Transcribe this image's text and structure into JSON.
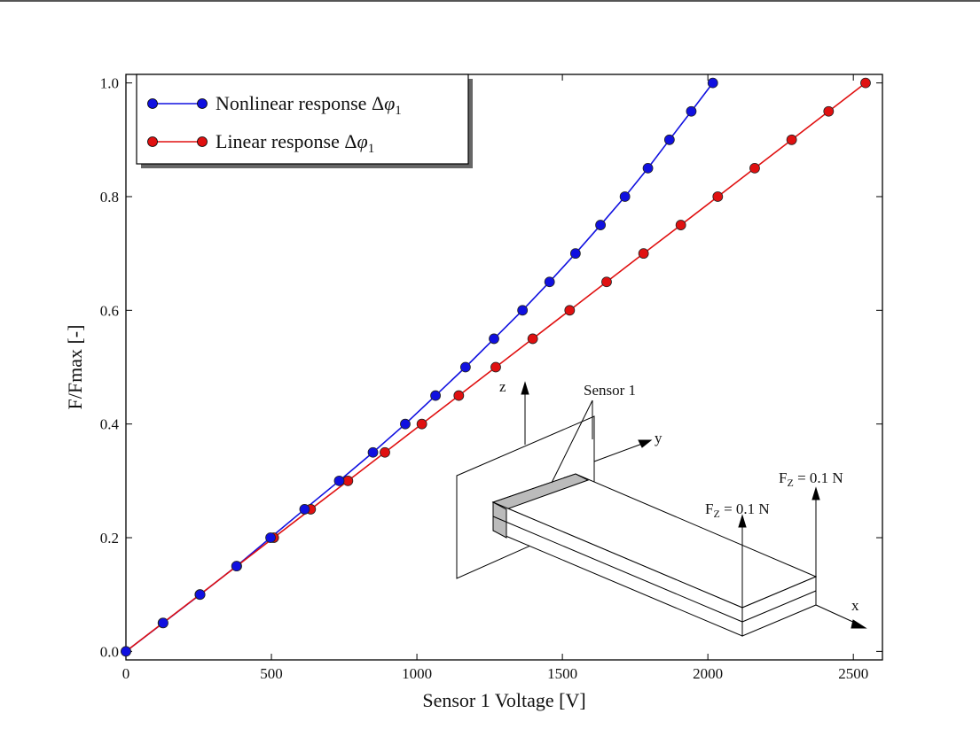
{
  "chart_data": {
    "type": "line",
    "xlabel": "Sensor 1 Voltage [V]",
    "ylabel": "F/Fmax  [-]",
    "xlim": [
      0,
      2600
    ],
    "ylim": [
      -0.015,
      1.015
    ],
    "xticks": [
      0,
      500,
      1000,
      1500,
      2000,
      2500
    ],
    "yticks": [
      0.0,
      0.2,
      0.4,
      0.6,
      0.8,
      1.0
    ],
    "xtick_labels": [
      "0",
      "500",
      "1000",
      "1500",
      "2000",
      "2500"
    ],
    "ytick_labels": [
      "0.0",
      "0.2",
      "0.4",
      "0.6",
      "0.8",
      "1.0"
    ],
    "grid": false,
    "legend_position": "top-left",
    "series": [
      {
        "name": "Nonlinear response Δφ₁",
        "legend_main": "Nonlinear response Δ",
        "legend_greek": "φ",
        "legend_sub": "1",
        "color": "#1010e0",
        "x": [
          0,
          128,
          255,
          380,
          497,
          614,
          733,
          849,
          960,
          1064,
          1167,
          1265,
          1363,
          1456,
          1545,
          1631,
          1715,
          1794,
          1868,
          1943,
          2017
        ],
        "y": [
          0.0,
          0.05,
          0.1,
          0.15,
          0.2,
          0.25,
          0.3,
          0.35,
          0.4,
          0.45,
          0.5,
          0.55,
          0.6,
          0.65,
          0.7,
          0.75,
          0.8,
          0.85,
          0.9,
          0.95,
          1.0
        ]
      },
      {
        "name": "Linear response Δφ₁",
        "legend_main": "Linear response Δ",
        "legend_greek": "φ",
        "legend_sub": "1",
        "color": "#e01010",
        "x": [
          0,
          127,
          254,
          381,
          508,
          635,
          763,
          890,
          1017,
          1144,
          1271,
          1398,
          1525,
          1652,
          1779,
          1907,
          2034,
          2161,
          2288,
          2415,
          2542
        ],
        "y": [
          0.0,
          0.05,
          0.1,
          0.15,
          0.2,
          0.25,
          0.3,
          0.35,
          0.4,
          0.45,
          0.5,
          0.55,
          0.6,
          0.65,
          0.7,
          0.75,
          0.8,
          0.85,
          0.9,
          0.95,
          1.0
        ]
      }
    ],
    "annotations": {
      "sensor_label": "Sensor 1",
      "axis_z": "z",
      "axis_y": "y",
      "axis_x": "x",
      "force_prefix": "F",
      "force_sub": "Z",
      "force_suffix": " = 0.1 N"
    }
  }
}
